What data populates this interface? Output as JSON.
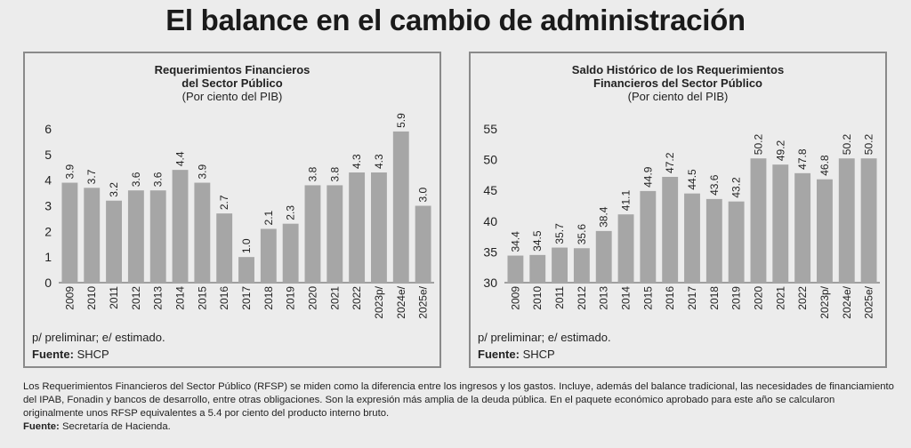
{
  "headline": "El balance en el cambio de administración",
  "chart_data": [
    {
      "type": "bar",
      "title": "Requerimientos Financieros",
      "title_line2": "del Sector Público",
      "subtitle": "(Por ciento del PIB)",
      "categories": [
        "2009",
        "2010",
        "2011",
        "2012",
        "2013",
        "2014",
        "2015",
        "2016",
        "2017",
        "2018",
        "2019",
        "2020",
        "2021",
        "2022",
        "2023p/",
        "2024e/",
        "2025e/"
      ],
      "values": [
        3.9,
        3.7,
        3.2,
        3.6,
        3.6,
        4.4,
        3.9,
        2.7,
        1.0,
        2.1,
        2.3,
        3.8,
        3.8,
        4.3,
        4.3,
        5.9,
        3.0
      ],
      "value_labels": [
        "3.9",
        "3.7",
        "3.2",
        "3.6",
        "3.6",
        "4.4",
        "3.9",
        "2.7",
        "1.0",
        "2.1",
        "2.3",
        "3.8",
        "3.8",
        "4.3",
        "4.3",
        "5.9",
        "3.0"
      ],
      "ylim": [
        0,
        6
      ],
      "yticks": [
        0,
        1,
        2,
        3,
        4,
        5,
        6
      ],
      "bar_color": "#a6a6a6",
      "note": "p/ preliminar; e/ estimado.",
      "source_label": "Fuente:",
      "source": "SHCP"
    },
    {
      "type": "bar",
      "title": "Saldo Histórico de los Requerimientos",
      "title_line2": "Financieros del Sector Público",
      "subtitle": "(Por ciento del PIB)",
      "categories": [
        "2009",
        "2010",
        "2011",
        "2012",
        "2013",
        "2014",
        "2015",
        "2016",
        "2017",
        "2018",
        "2019",
        "2020",
        "2021",
        "2022",
        "2023p/",
        "2024e/",
        "2025e/"
      ],
      "values": [
        34.4,
        34.5,
        35.7,
        35.6,
        38.4,
        41.1,
        44.9,
        47.2,
        44.5,
        43.6,
        43.2,
        50.2,
        49.2,
        47.8,
        46.8,
        50.2,
        50.2
      ],
      "value_labels": [
        "34.4",
        "34.5",
        "35.7",
        "35.6",
        "38.4",
        "41.1",
        "44.9",
        "47.2",
        "44.5",
        "43.6",
        "43.2",
        "50.2",
        "49.2",
        "47.8",
        "46.8",
        "50.2",
        "50.2"
      ],
      "ylim": [
        30,
        55
      ],
      "yticks": [
        30,
        35,
        40,
        45,
        50,
        55
      ],
      "bar_color": "#a6a6a6",
      "note": "p/ preliminar; e/ estimado.",
      "source_label": "Fuente:",
      "source": "SHCP"
    }
  ],
  "footer": {
    "text": "Los Requerimientos Financieros del Sector Público (RFSP) se miden como la diferencia entre los ingresos y los gastos. Incluye, además del balance tradicional, las necesidades de financiamiento del IPAB, Fonadin y bancos de desarrollo, entre otras obligaciones. Son la expresión más amplia de la deuda pública. En el paquete económico aprobado para este año se calcularon originalmente unos RFSP equivalentes a 5.4 por ciento del producto interno bruto.",
    "source_label": "Fuente:",
    "source": "Secretaría de Hacienda."
  }
}
